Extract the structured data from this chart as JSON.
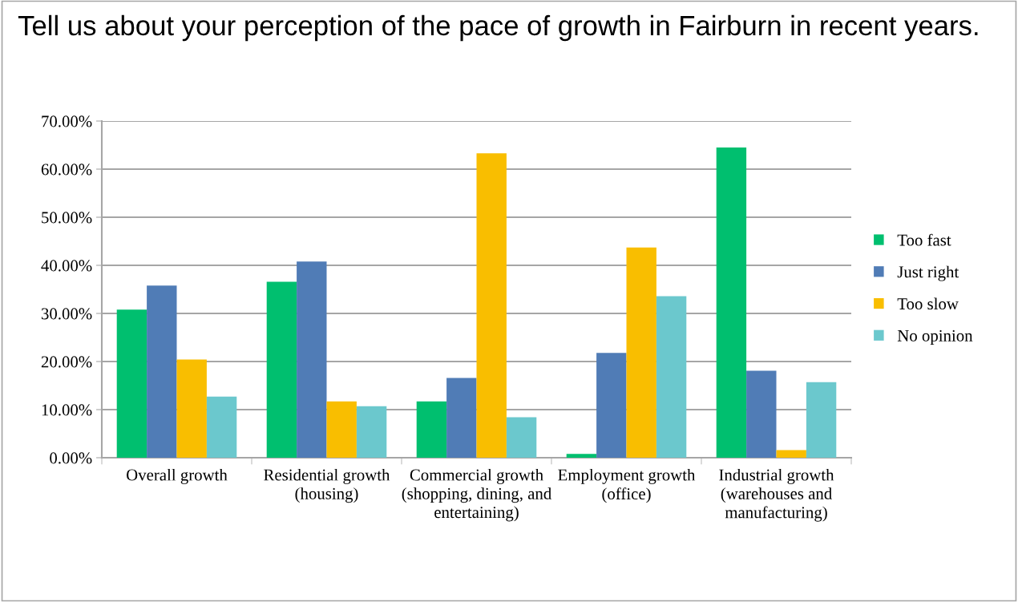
{
  "chart_data": {
    "type": "bar",
    "title": "Tell us about your perception of the pace of growth in Fairburn in recent years.",
    "categories": [
      "Overall growth",
      "Residential growth (housing)",
      "Commercial growth (shopping, dining, and entertaining)",
      "Employment growth (office)",
      "Industrial growth (warehouses and manufacturing)"
    ],
    "series": [
      {
        "name": "Too fast",
        "color": "#00bf6f",
        "values": [
          30.8,
          36.6,
          11.7,
          0.8,
          64.5
        ]
      },
      {
        "name": "Just right",
        "color": "#507cb6",
        "values": [
          35.8,
          40.8,
          16.6,
          21.8,
          18.1
        ]
      },
      {
        "name": "Too slow",
        "color": "#f9be00",
        "values": [
          20.4,
          11.7,
          63.3,
          43.7,
          1.6
        ]
      },
      {
        "name": "No opinion",
        "color": "#6bc8cd",
        "values": [
          12.7,
          10.7,
          8.4,
          33.6,
          15.7
        ]
      }
    ],
    "ylim": [
      0,
      70
    ],
    "yticks": [
      {
        "value": 0,
        "label": "0.00%"
      },
      {
        "value": 10,
        "label": "10.00%"
      },
      {
        "value": 20,
        "label": "20.00%"
      },
      {
        "value": 30,
        "label": "30.00%"
      },
      {
        "value": 40,
        "label": "40.00%"
      },
      {
        "value": 50,
        "label": "50.00%"
      },
      {
        "value": 60,
        "label": "60.00%"
      },
      {
        "value": 70,
        "label": "70.00%"
      }
    ],
    "grid": "y",
    "legend": "right"
  }
}
